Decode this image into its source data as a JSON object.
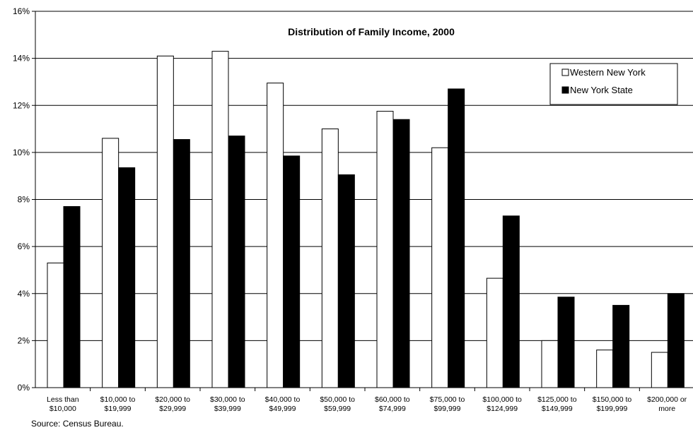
{
  "chart_data": {
    "type": "bar",
    "title": "Distribution of Family Income, 2000",
    "categories": [
      [
        "Less than",
        "$10,000"
      ],
      [
        "$10,000 to",
        "$19,999"
      ],
      [
        "$20,000 to",
        "$29,999"
      ],
      [
        "$30,000 to",
        "$39,999"
      ],
      [
        "$40,000 to",
        "$49,999"
      ],
      [
        "$50,000 to",
        "$59,999"
      ],
      [
        "$60,000 to",
        "$74,999"
      ],
      [
        "$75,000 to",
        "$99,999"
      ],
      [
        "$100,000 to",
        "$124,999"
      ],
      [
        "$125,000 to",
        "$149,999"
      ],
      [
        "$150,000 to",
        "$199,999"
      ],
      [
        "$200,000 or",
        "more"
      ]
    ],
    "series": [
      {
        "name": "Western New York",
        "color": "#ffffff",
        "values": [
          5.3,
          10.6,
          14.1,
          14.3,
          12.95,
          11.0,
          11.75,
          10.2,
          4.65,
          2.0,
          1.6,
          1.5
        ]
      },
      {
        "name": "New York State",
        "color": "#000000",
        "values": [
          7.7,
          9.35,
          10.55,
          10.7,
          9.85,
          9.05,
          11.4,
          12.7,
          7.3,
          3.85,
          3.5,
          4.0
        ]
      }
    ],
    "ylim": [
      0,
      16
    ],
    "yticks": [
      "0%",
      "2%",
      "4%",
      "6%",
      "8%",
      "10%",
      "12%",
      "14%",
      "16%"
    ],
    "grid": true,
    "legend": "top-right"
  },
  "source": "Source: Census Bureau."
}
